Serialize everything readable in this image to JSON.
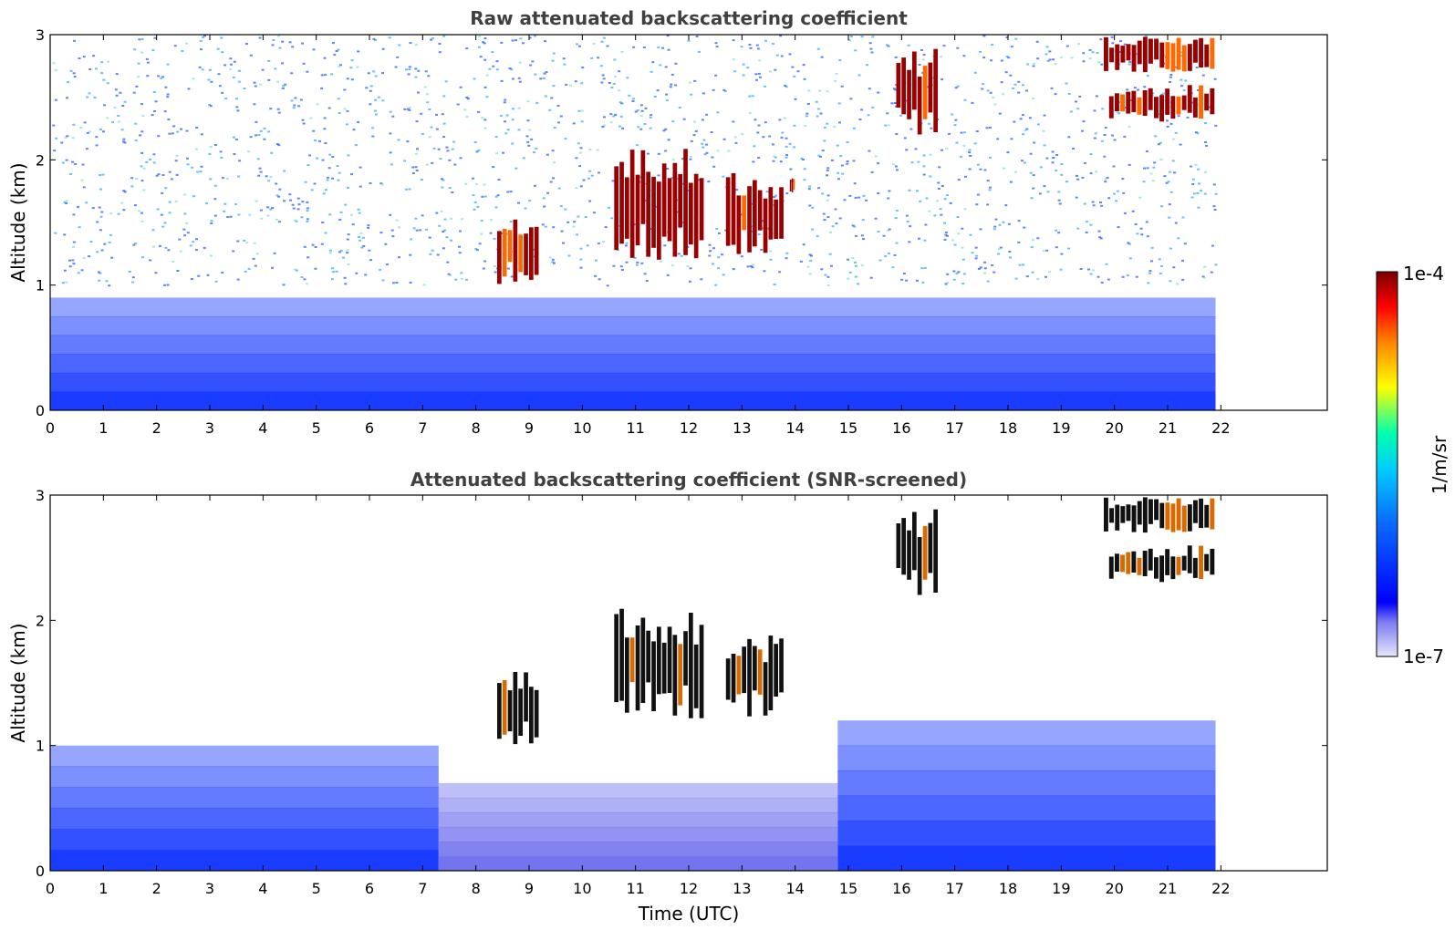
{
  "chart_data": [
    {
      "type": "heatmap",
      "title": "Raw attenuated backscattering coefficient",
      "xlabel": "",
      "ylabel": "Altitude (km)",
      "xlim": [
        0,
        24
      ],
      "ylim": [
        0,
        3
      ],
      "data_extent_hours": [
        0,
        21.9
      ],
      "xticks": [
        "0",
        "1",
        "2",
        "3",
        "4",
        "5",
        "6",
        "7",
        "8",
        "9",
        "10",
        "11",
        "12",
        "13",
        "14",
        "15",
        "16",
        "17",
        "18",
        "19",
        "20",
        "21",
        "22"
      ],
      "yticks": [
        "0",
        "1",
        "2",
        "3"
      ],
      "features": [
        {
          "name": "boundary layer aerosol",
          "t_start": 0,
          "t_end": 21.9,
          "alt_top_km": 0.9,
          "level": "low"
        },
        {
          "name": "noise field",
          "t_start": 0,
          "t_end": 21.9,
          "alt_km": [
            1.0,
            3.0
          ],
          "level": "low-moderate"
        },
        {
          "name": "cloud",
          "t_start": 8.4,
          "t_end": 9.2,
          "alt_km": [
            1.0,
            1.6
          ],
          "level": "high"
        },
        {
          "name": "cloud",
          "t_start": 10.6,
          "t_end": 12.3,
          "alt_km": [
            1.2,
            2.1
          ],
          "level": "high"
        },
        {
          "name": "cloud",
          "t_start": 12.7,
          "t_end": 13.8,
          "alt_km": [
            1.2,
            1.9
          ],
          "level": "high"
        },
        {
          "name": "cloud",
          "t_start": 13.9,
          "t_end": 14.0,
          "alt_km": [
            1.7,
            1.9
          ],
          "level": "high"
        },
        {
          "name": "cloud",
          "t_start": 15.9,
          "t_end": 16.7,
          "alt_km": [
            2.2,
            2.9
          ],
          "level": "high"
        },
        {
          "name": "cloud",
          "t_start": 19.8,
          "t_end": 21.9,
          "alt_km": [
            2.7,
            3.0
          ],
          "level": "high"
        },
        {
          "name": "cloud",
          "t_start": 19.9,
          "t_end": 21.9,
          "alt_km": [
            2.3,
            2.6
          ],
          "level": "high"
        }
      ]
    },
    {
      "type": "heatmap",
      "title": "Attenuated backscattering coefficient (SNR-screened)",
      "xlabel": "Time (UTC)",
      "ylabel": "Altitude (km)",
      "xlim": [
        0,
        24
      ],
      "ylim": [
        0,
        3
      ],
      "data_extent_hours": [
        0,
        21.9
      ],
      "xticks": [
        "0",
        "1",
        "2",
        "3",
        "4",
        "5",
        "6",
        "7",
        "8",
        "9",
        "10",
        "11",
        "12",
        "13",
        "14",
        "15",
        "16",
        "17",
        "18",
        "19",
        "20",
        "21",
        "22"
      ],
      "yticks": [
        "0",
        "1",
        "2",
        "3"
      ],
      "features": [
        {
          "name": "boundary layer aerosol",
          "t_start": 0,
          "t_end": 7.3,
          "alt_top_km": 1.0,
          "level": "low"
        },
        {
          "name": "weak daytime aerosol",
          "t_start": 7.3,
          "t_end": 14.8,
          "alt_top_km": 0.7,
          "level": "very low"
        },
        {
          "name": "boundary layer aerosol",
          "t_start": 14.8,
          "t_end": 21.9,
          "alt_top_km": 1.2,
          "level": "low"
        },
        {
          "name": "cloud",
          "t_start": 8.4,
          "t_end": 9.2,
          "alt_km": [
            1.0,
            1.6
          ],
          "level": "saturated"
        },
        {
          "name": "cloud",
          "t_start": 10.6,
          "t_end": 12.3,
          "alt_km": [
            1.2,
            2.1
          ],
          "level": "saturated"
        },
        {
          "name": "cloud",
          "t_start": 12.7,
          "t_end": 13.8,
          "alt_km": [
            1.2,
            1.9
          ],
          "level": "saturated"
        },
        {
          "name": "cloud",
          "t_start": 15.9,
          "t_end": 16.7,
          "alt_km": [
            2.2,
            2.9
          ],
          "level": "saturated"
        },
        {
          "name": "cloud",
          "t_start": 19.8,
          "t_end": 21.9,
          "alt_km": [
            2.7,
            3.0
          ],
          "level": "saturated"
        },
        {
          "name": "cloud",
          "t_start": 19.9,
          "t_end": 21.9,
          "alt_km": [
            2.3,
            2.6
          ],
          "level": "saturated"
        }
      ]
    }
  ],
  "colorbar": {
    "label": "1/m/sr",
    "min_label": "1e-7",
    "max_label": "1e-4",
    "scale": "log",
    "colormap": [
      "#e6e6fa",
      "#0000ff",
      "#00bfff",
      "#00ffcc",
      "#ffff00",
      "#ff8000",
      "#ff0000",
      "#800000"
    ]
  }
}
